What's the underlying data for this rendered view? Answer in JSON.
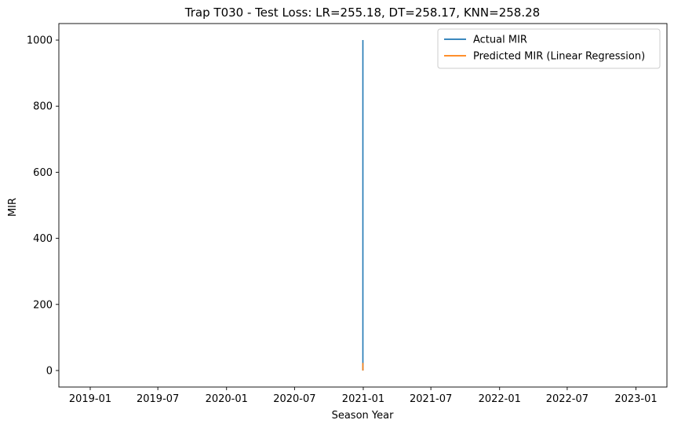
{
  "chart_data": {
    "type": "line",
    "title": "Trap T030 - Test Loss: LR=255.18, DT=258.17, KNN=258.28",
    "xlabel": "Season Year",
    "ylabel": "MIR",
    "x_axis_type": "date",
    "x_ticks": [
      "2019-01",
      "2019-07",
      "2020-01",
      "2020-07",
      "2021-01",
      "2021-07",
      "2022-01",
      "2022-07",
      "2023-01"
    ],
    "y_ticks": [
      0,
      200,
      400,
      600,
      800,
      1000
    ],
    "xlim": [
      "2018-10-09",
      "2023-03-25"
    ],
    "ylim": [
      -50,
      1050
    ],
    "grid": false,
    "legend_position": "top-right",
    "series": [
      {
        "name": "Actual MIR",
        "color": "#1f77b4",
        "points": [
          {
            "x": "2020-12-31",
            "y": 0
          },
          {
            "x": "2020-12-31",
            "y": 1000
          }
        ]
      },
      {
        "name": "Predicted MIR (Linear Regression)",
        "color": "#ff7f0e",
        "points": [
          {
            "x": "2020-12-31",
            "y": 0
          },
          {
            "x": "2020-12-31",
            "y": 23
          }
        ]
      }
    ]
  }
}
